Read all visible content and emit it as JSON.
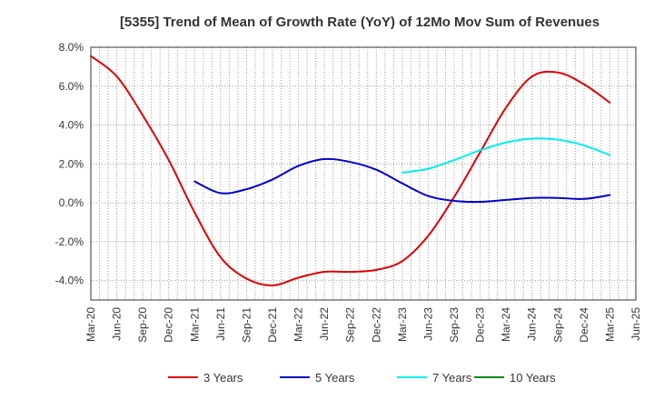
{
  "chart_data": {
    "type": "line",
    "title": "[5355]  Trend of Mean of Growth Rate (YoY) of 12Mo Mov Sum of Revenues",
    "xlabel": "",
    "ylabel": "",
    "ylim": [
      -5,
      8
    ],
    "ytick_values": [
      -4,
      -2,
      0,
      2,
      4,
      6,
      8
    ],
    "ytick_labels": [
      "-4.0%",
      "-2.0%",
      "0.0%",
      "2.0%",
      "4.0%",
      "6.0%",
      "8.0%"
    ],
    "categories": [
      "Mar-20",
      "Jun-20",
      "Sep-20",
      "Dec-20",
      "Mar-21",
      "Jun-21",
      "Sep-21",
      "Dec-21",
      "Mar-22",
      "Jun-22",
      "Sep-22",
      "Dec-22",
      "Mar-23",
      "Jun-23",
      "Sep-23",
      "Dec-23",
      "Mar-24",
      "Jun-24",
      "Sep-24",
      "Dec-24",
      "Mar-25",
      "Jun-25"
    ],
    "grid": true,
    "legend_position": "bottom",
    "series": [
      {
        "name": "3 Years",
        "color": "#dd0000",
        "values": [
          7.55,
          6.5,
          4.5,
          2.2,
          -0.5,
          -2.8,
          -3.9,
          -4.25,
          -3.85,
          -3.55,
          -3.55,
          -3.45,
          -3.0,
          -1.7,
          0.3,
          2.6,
          4.9,
          6.5,
          6.7,
          6.1,
          5.15,
          null
        ]
      },
      {
        "name": "5 Years",
        "color": "#0000cc",
        "values": [
          null,
          null,
          null,
          null,
          1.1,
          0.5,
          0.7,
          1.2,
          1.9,
          2.25,
          2.1,
          1.7,
          1.0,
          0.35,
          0.1,
          0.05,
          0.15,
          0.25,
          0.25,
          0.2,
          0.4,
          null
        ]
      },
      {
        "name": "7 Years",
        "color": "#00eeee",
        "values": [
          null,
          null,
          null,
          null,
          null,
          null,
          null,
          null,
          null,
          null,
          null,
          null,
          1.55,
          1.75,
          2.2,
          2.7,
          3.1,
          3.3,
          3.25,
          2.95,
          2.45,
          null
        ]
      },
      {
        "name": "10 Years",
        "color": "#008800",
        "values": [
          null,
          null,
          null,
          null,
          null,
          null,
          null,
          null,
          null,
          null,
          null,
          null,
          null,
          null,
          null,
          null,
          null,
          null,
          null,
          null,
          null,
          null
        ]
      }
    ]
  }
}
